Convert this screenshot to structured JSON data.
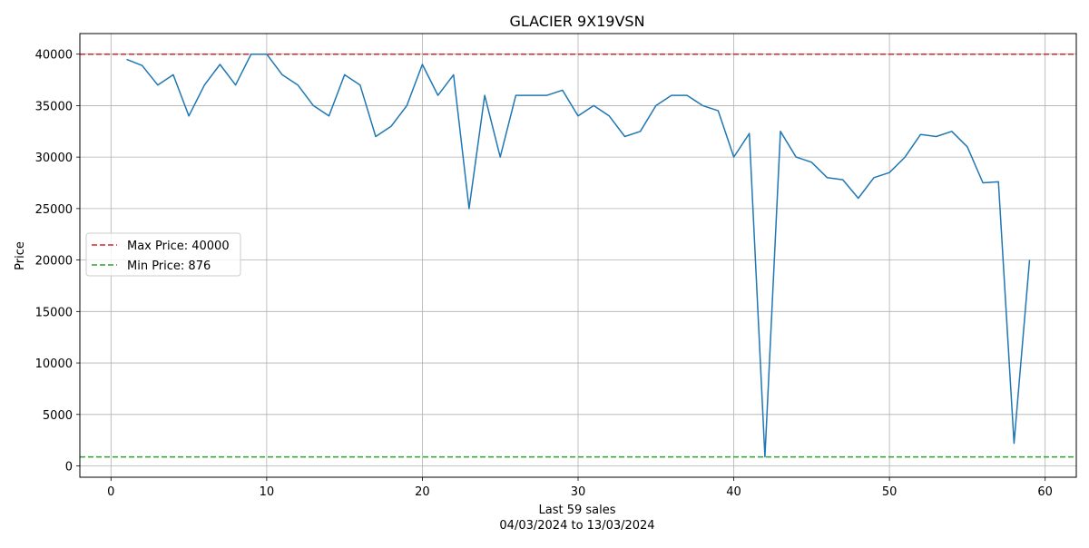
{
  "chart_data": {
    "type": "line",
    "title": "GLACIER 9X19VSN",
    "xlabel": "Last 59 sales",
    "xlabel_sub": "04/03/2024 to 13/03/2024",
    "ylabel": "Price",
    "xlim": [
      -2,
      62
    ],
    "ylim": [
      -1100,
      42000
    ],
    "xticks": [
      0,
      10,
      20,
      30,
      40,
      50,
      60
    ],
    "yticks": [
      0,
      5000,
      10000,
      15000,
      20000,
      25000,
      30000,
      35000,
      40000
    ],
    "grid": true,
    "legend_position": "center-left",
    "series": [
      {
        "color": "#1f77b4",
        "x": [
          1,
          2,
          3,
          4,
          5,
          6,
          7,
          8,
          9,
          10,
          11,
          12,
          13,
          14,
          15,
          16,
          17,
          18,
          19,
          20,
          21,
          22,
          23,
          24,
          25,
          26,
          27,
          28,
          29,
          30,
          31,
          32,
          33,
          34,
          35,
          36,
          37,
          38,
          39,
          40,
          41,
          42,
          43,
          44,
          45,
          46,
          47,
          48,
          49,
          50,
          51,
          52,
          53,
          54,
          55,
          56,
          57,
          58,
          59
        ],
        "y": [
          39500,
          38900,
          37000,
          38000,
          34000,
          37000,
          39000,
          37000,
          40000,
          40000,
          38000,
          37000,
          35000,
          34000,
          38000,
          37000,
          32000,
          33000,
          35000,
          39000,
          36000,
          38000,
          25000,
          36000,
          30000,
          36000,
          36000,
          36000,
          36500,
          34000,
          35000,
          34000,
          32000,
          32500,
          35000,
          36000,
          36000,
          35000,
          34500,
          30000,
          32300,
          876,
          32500,
          30000,
          29500,
          28000,
          27800,
          26000,
          28000,
          28500,
          30000,
          32200,
          32000,
          32500,
          31000,
          27500,
          27600,
          2200,
          20000
        ]
      }
    ],
    "reference_lines": [
      {
        "label": "Max Price: 40000",
        "value": 40000,
        "color": "#d62728"
      },
      {
        "label": "Min Price: 876",
        "value": 876,
        "color": "#2ca02c"
      }
    ]
  }
}
